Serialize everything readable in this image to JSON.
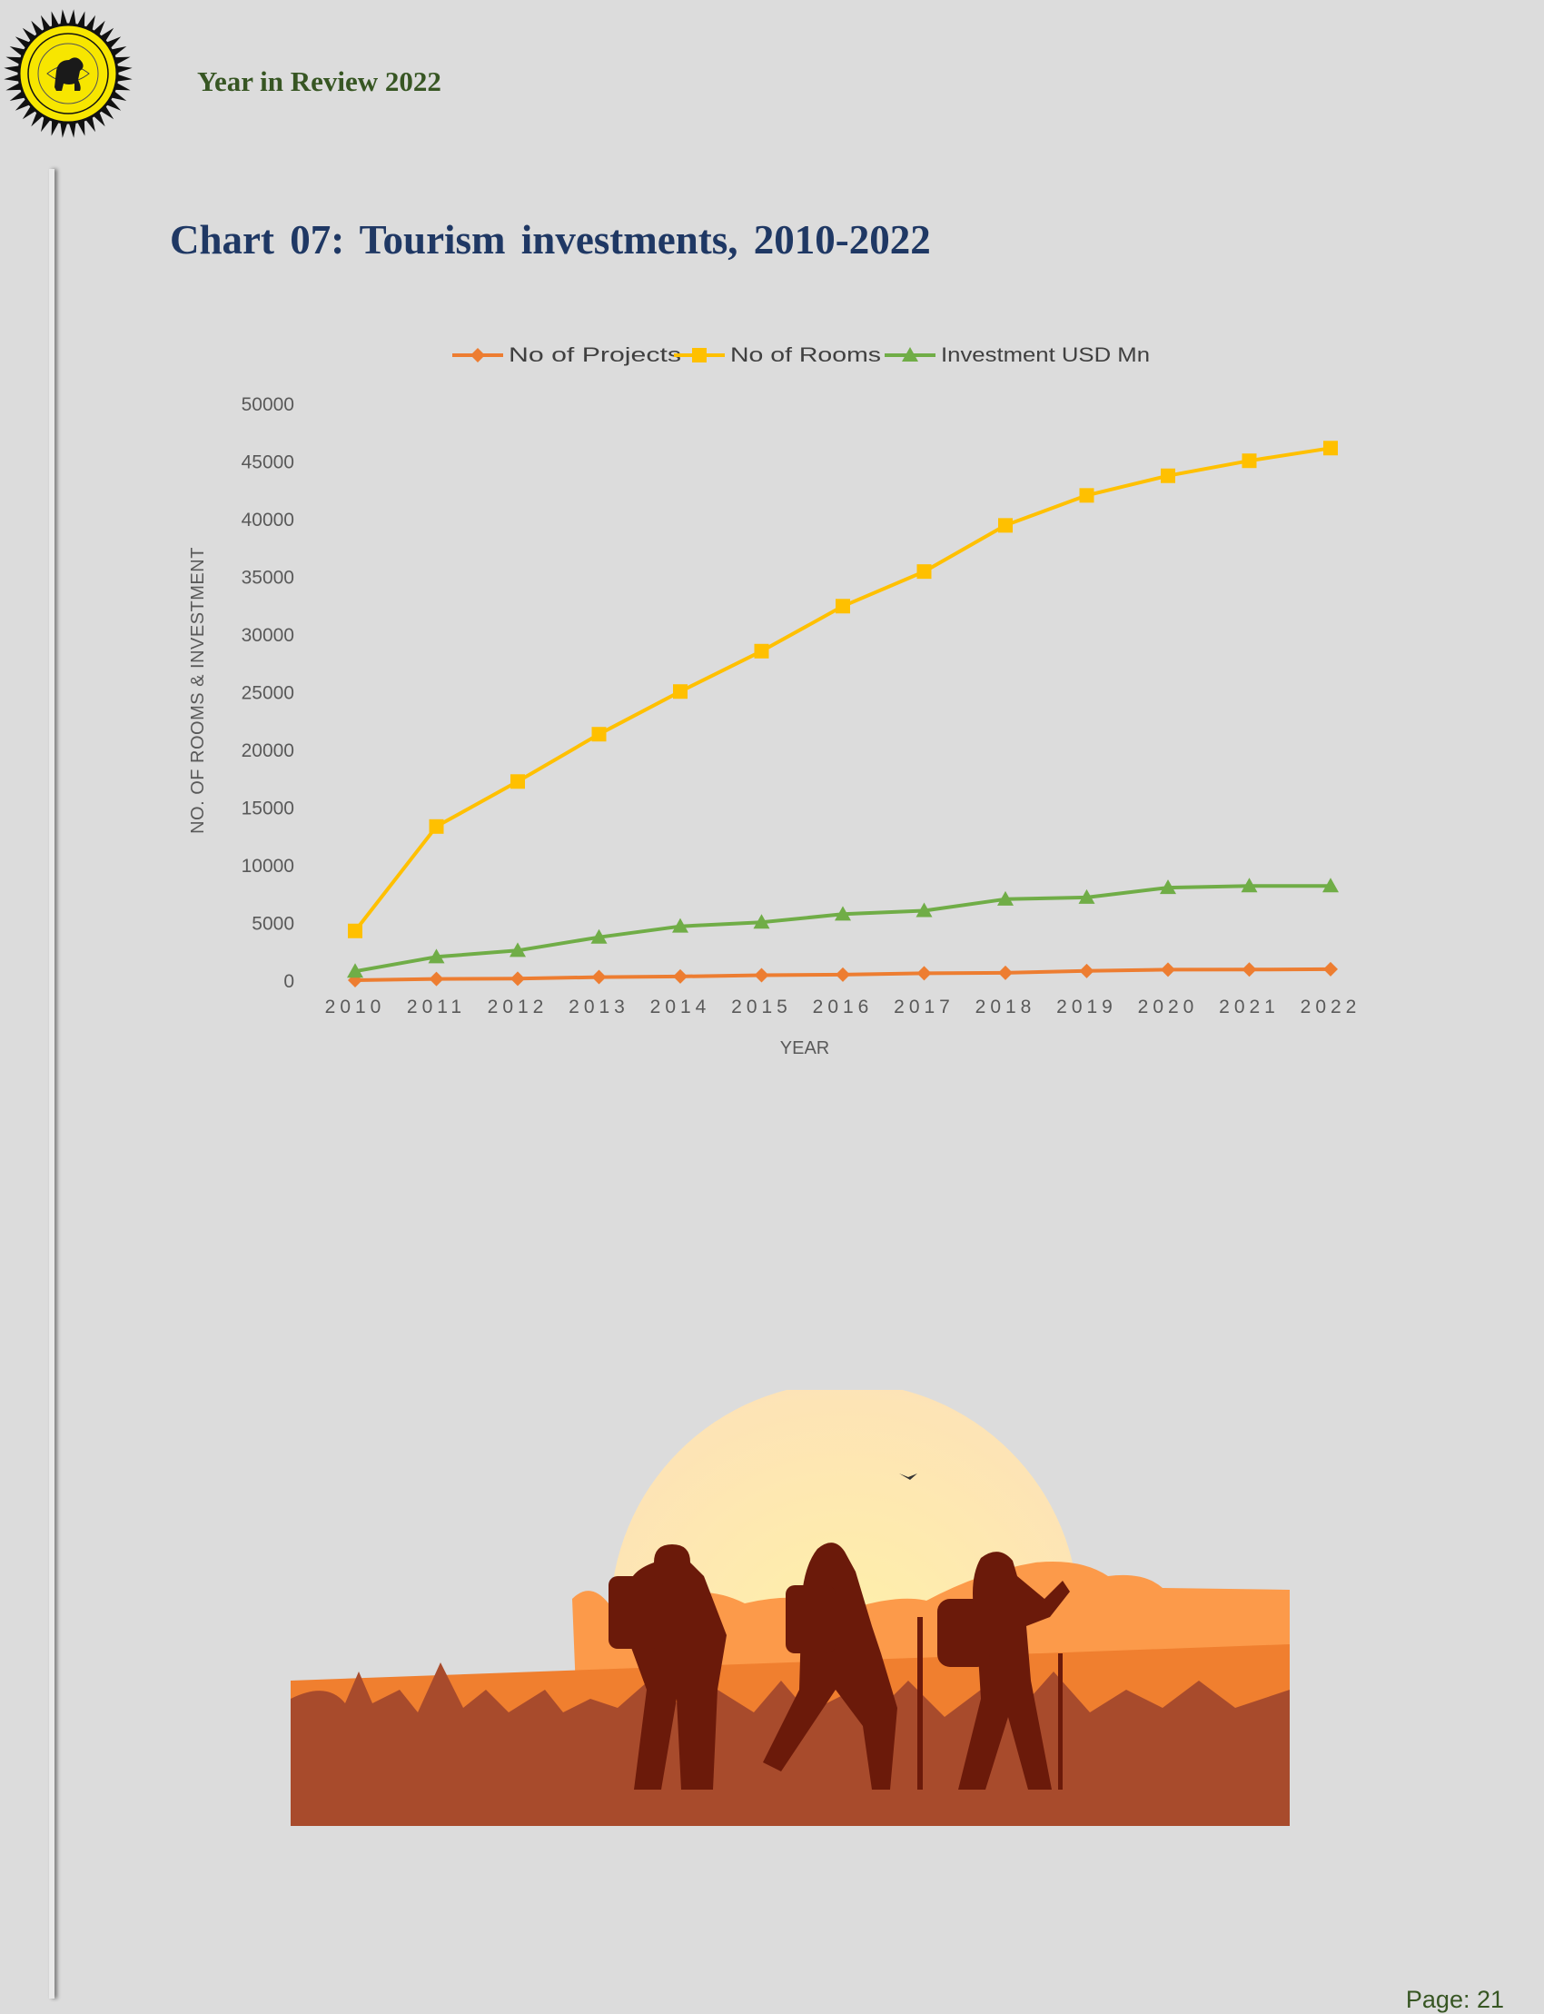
{
  "header": {
    "report_title": "Year in Review 2022",
    "logo_icon": "sri-lanka-tourism-lion-seal-icon"
  },
  "page": {
    "chart_heading": "Chart 07: Tourism  investments,  2010-2022"
  },
  "chart_data": {
    "type": "line",
    "title": "",
    "xlabel": "YEAR",
    "ylabel": "NO. OF ROOMS & INVESTMENT",
    "ylim": [
      0,
      50000
    ],
    "yticks": [
      0,
      5000,
      10000,
      15000,
      20000,
      25000,
      30000,
      35000,
      40000,
      45000,
      50000
    ],
    "categories": [
      "2010",
      "2011",
      "2012",
      "2013",
      "2014",
      "2015",
      "2016",
      "2017",
      "2018",
      "2019",
      "2020",
      "2021",
      "2022"
    ],
    "legend_position": "top",
    "grid": false,
    "series": [
      {
        "name": "No of Projects",
        "color": "#ed7d31",
        "marker": "diamond",
        "values": [
          80,
          190,
          210,
          350,
          400,
          510,
          560,
          680,
          720,
          880,
          990,
          1000,
          1030
        ]
      },
      {
        "name": "No of Rooms",
        "color": "#ffc000",
        "marker": "square",
        "values": [
          4350,
          13400,
          17300,
          21400,
          25100,
          28600,
          32500,
          35500,
          39500,
          42100,
          43800,
          45100,
          46200
        ]
      },
      {
        "name": "Investment USD Mn",
        "color": "#70ad47",
        "marker": "triangle",
        "values": [
          850,
          2100,
          2650,
          3800,
          4750,
          5100,
          5800,
          6100,
          7100,
          7250,
          8100,
          8250,
          8250
        ]
      }
    ]
  },
  "illustration": {
    "icon": "hikers-at-sunset-illustration"
  },
  "footer": {
    "page_label": "Page: 21"
  }
}
